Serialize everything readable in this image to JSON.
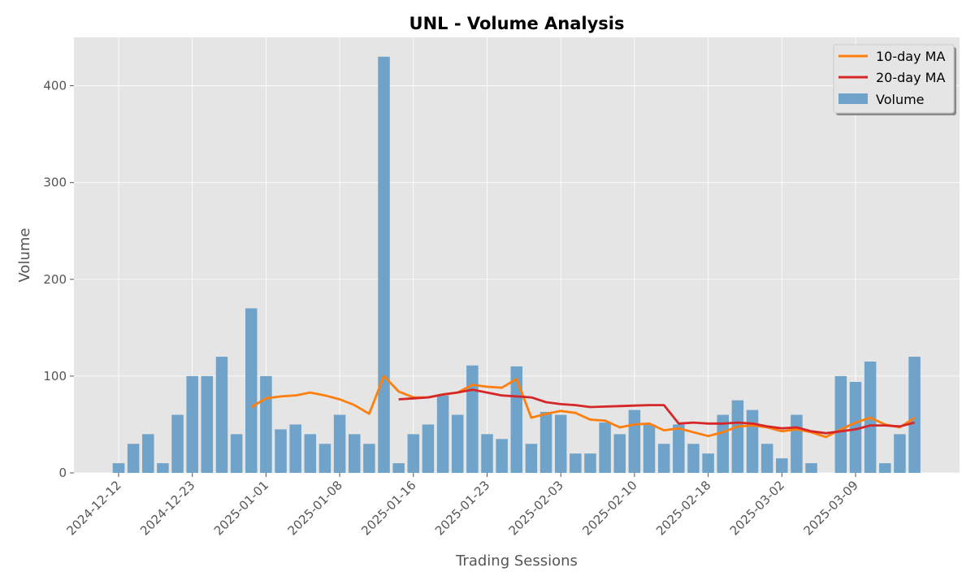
{
  "chart_data": {
    "type": "bar",
    "title": "UNL - Volume Analysis",
    "xlabel": "Trading Sessions",
    "ylabel": "Volume",
    "ylim": [
      0,
      450
    ],
    "yticks": [
      0,
      100,
      200,
      300,
      400
    ],
    "grid": true,
    "legend_position": "top-right",
    "xtick_labels": [
      {
        "label": "2024-12-12",
        "index": 0
      },
      {
        "label": "2024-12-23",
        "index": 5
      },
      {
        "label": "2025-01-01",
        "index": 10
      },
      {
        "label": "2025-01-08",
        "index": 15
      },
      {
        "label": "2025-01-16",
        "index": 20
      },
      {
        "label": "2025-01-23",
        "index": 25
      },
      {
        "label": "2025-02-03",
        "index": 30
      },
      {
        "label": "2025-02-10",
        "index": 35
      },
      {
        "label": "2025-02-18",
        "index": 40
      },
      {
        "label": "2025-03-02",
        "index": 45
      },
      {
        "label": "2025-03-09",
        "index": 50
      }
    ],
    "series": [
      {
        "name": "Volume",
        "kind": "bar",
        "color": "#6fa3c9",
        "values": [
          10,
          30,
          40,
          10,
          60,
          100,
          100,
          120,
          40,
          170,
          100,
          45,
          50,
          40,
          30,
          60,
          40,
          30,
          430,
          10,
          40,
          50,
          80,
          60,
          111,
          40,
          35,
          110,
          30,
          63,
          60,
          20,
          20,
          52,
          40,
          65,
          50,
          30,
          50,
          30,
          20,
          60,
          75,
          65,
          30,
          15,
          60,
          10,
          null,
          100,
          94,
          115,
          10,
          40,
          120
        ]
      },
      {
        "name": "10-day MA",
        "kind": "line",
        "color": "#ff7f0e",
        "values": [
          null,
          null,
          null,
          null,
          null,
          null,
          null,
          null,
          null,
          68,
          77,
          79,
          80,
          83,
          80,
          76,
          70,
          61,
          100,
          84,
          78,
          78,
          81,
          83,
          91,
          89,
          88,
          97,
          57,
          61,
          64,
          62,
          55,
          54,
          47,
          50,
          51,
          44,
          46,
          42,
          38,
          42,
          48,
          49,
          47,
          43,
          45,
          42,
          37,
          45,
          52,
          57,
          50,
          47,
          57
        ]
      },
      {
        "name": "20-day MA",
        "kind": "line",
        "color": "#d62728",
        "values": [
          null,
          null,
          null,
          null,
          null,
          null,
          null,
          null,
          null,
          null,
          null,
          null,
          null,
          null,
          null,
          null,
          null,
          null,
          null,
          76,
          77,
          78,
          81,
          83,
          86,
          83,
          80,
          79,
          78,
          73,
          71,
          70,
          68,
          68.5,
          69,
          69.5,
          70,
          70,
          51,
          52,
          51,
          51,
          52,
          51,
          48,
          46,
          47,
          43,
          41,
          43,
          45,
          49,
          49,
          48,
          52
        ]
      }
    ]
  }
}
